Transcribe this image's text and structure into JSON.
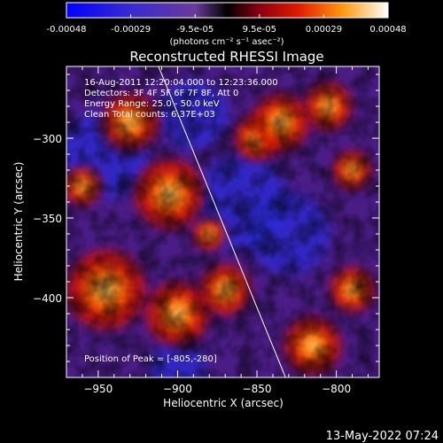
{
  "chart_data": {
    "type": "heatmap",
    "title": "Reconstructed RHESSI Image",
    "xlabel": "Heliocentric X (arcsec)",
    "ylabel": "Heliocentric Y (arcsec)",
    "xlim": [
      -970,
      -773
    ],
    "ylim": [
      -450,
      -255
    ],
    "xticks": [
      -950,
      -900,
      -850,
      -800
    ],
    "yticks": [
      -300,
      -350,
      -400
    ],
    "colorbar": {
      "ticks": [
        "-0.00048",
        "-0.00029",
        "-9.5e-05",
        "9.5e-05",
        "0.00029",
        "0.00048"
      ],
      "unit": "(photons cm⁻² s⁻¹ asec⁻²)",
      "range": [
        -0.00048,
        0.00048
      ]
    },
    "annotations": [
      "16-Aug-2011 12:20:04.000 to 12:23:36.000",
      "Detectors: 3F 4F 5F 6F 7F 8F, Att 0",
      "Energy Range: 25.0 - 50.0 keV",
      "Clean     Total counts: 6.37E+03"
    ],
    "peak_label": "Position of Peak = [-805,-280]",
    "peak": [
      -805,
      -280
    ],
    "limb_line": {
      "x1": -912,
      "y1": -255,
      "x2": -832,
      "y2": -450
    },
    "hot_spots": [
      {
        "x": -930,
        "y": -290,
        "r": 18
      },
      {
        "x": -905,
        "y": -335,
        "r": 22
      },
      {
        "x": -945,
        "y": -395,
        "r": 25
      },
      {
        "x": -900,
        "y": -410,
        "r": 20
      },
      {
        "x": -870,
        "y": -395,
        "r": 16
      },
      {
        "x": -850,
        "y": -300,
        "r": 14
      },
      {
        "x": -835,
        "y": -290,
        "r": 18
      },
      {
        "x": -805,
        "y": -280,
        "r": 15
      },
      {
        "x": -790,
        "y": -320,
        "r": 12
      },
      {
        "x": -790,
        "y": -395,
        "r": 14
      },
      {
        "x": -815,
        "y": -430,
        "r": 18
      },
      {
        "x": -960,
        "y": -330,
        "r": 12
      },
      {
        "x": -880,
        "y": -360,
        "r": 10
      }
    ],
    "cold_spots": [
      {
        "x": -945,
        "y": -310,
        "r": 28
      },
      {
        "x": -890,
        "y": -285,
        "r": 22
      },
      {
        "x": -860,
        "y": -340,
        "r": 30
      },
      {
        "x": -830,
        "y": -360,
        "r": 26
      },
      {
        "x": -900,
        "y": -445,
        "r": 18
      }
    ]
  },
  "footer": {
    "timestamp": "13-May-2022 07:24"
  }
}
